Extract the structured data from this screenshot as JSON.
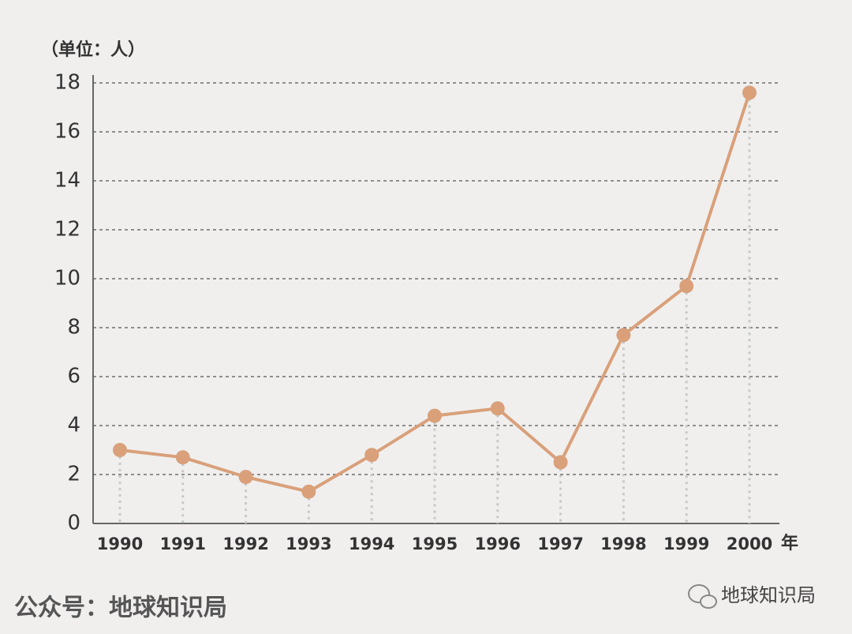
{
  "chart_data": {
    "type": "line",
    "unit_label": "（单位：人）",
    "x_unit": "年",
    "categories": [
      "1990",
      "1991",
      "1992",
      "1993",
      "1994",
      "1995",
      "1996",
      "1997",
      "1998",
      "1999",
      "2000"
    ],
    "values": [
      3.0,
      2.7,
      1.9,
      1.3,
      2.8,
      4.4,
      4.7,
      2.5,
      7.7,
      9.7,
      17.6
    ],
    "color": "#d9a07a",
    "ylim": [
      0,
      18
    ],
    "yticks": [
      0,
      2,
      4,
      6,
      8,
      10,
      12,
      14,
      16,
      18
    ],
    "grid": true,
    "footer": "公众号：地球知识局",
    "watermark": "地球知识局"
  }
}
